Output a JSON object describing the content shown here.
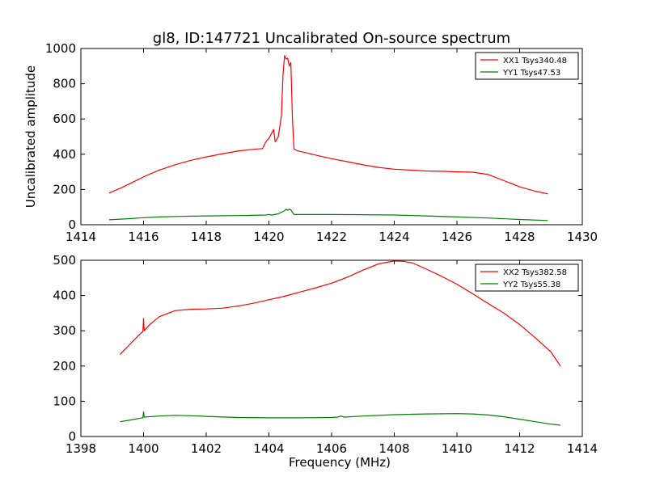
{
  "title": "gl8, ID:147721 Uncalibrated On-source spectrum",
  "colors": {
    "xx": "#ff0000",
    "yy": "#008000",
    "axes": "#000000"
  },
  "chart_data": [
    {
      "type": "line",
      "ylabel": "Uncalibrated amplitude",
      "xlabel": "",
      "xlim": [
        1414,
        1430
      ],
      "ylim": [
        0,
        1000
      ],
      "xticks": [
        1414,
        1416,
        1418,
        1420,
        1422,
        1424,
        1426,
        1428,
        1430
      ],
      "yticks": [
        0,
        200,
        400,
        600,
        800,
        1000
      ],
      "legend_position": "top-right",
      "series": [
        {
          "name": "XX1 Tsys340.48",
          "color": "#ff0000",
          "x": [
            1414.9,
            1415.3,
            1415.7,
            1416.1,
            1416.5,
            1417.0,
            1417.5,
            1418.0,
            1418.5,
            1419.0,
            1419.5,
            1419.8,
            1419.9,
            1420.0,
            1420.15,
            1420.2,
            1420.3,
            1420.4,
            1420.45,
            1420.5,
            1420.55,
            1420.6,
            1420.65,
            1420.7,
            1420.75,
            1420.8,
            1420.9,
            1421.2,
            1421.5,
            1422.0,
            1422.5,
            1423.0,
            1423.5,
            1424.0,
            1424.5,
            1425.0,
            1425.5,
            1426.0,
            1426.5,
            1427.0,
            1427.5,
            1428.0,
            1428.5,
            1428.9
          ],
          "y": [
            180,
            210,
            245,
            280,
            310,
            340,
            365,
            385,
            402,
            418,
            428,
            432,
            470,
            490,
            540,
            470,
            500,
            620,
            850,
            960,
            940,
            945,
            900,
            920,
            600,
            430,
            420,
            408,
            395,
            375,
            358,
            340,
            325,
            315,
            310,
            305,
            303,
            300,
            298,
            285,
            250,
            215,
            190,
            175
          ]
        },
        {
          "name": "YY1 Tsys47.53",
          "color": "#008000",
          "x": [
            1414.9,
            1415.5,
            1416.0,
            1416.5,
            1417.0,
            1418.0,
            1419.0,
            1419.5,
            1419.9,
            1420.0,
            1420.1,
            1420.3,
            1420.5,
            1420.55,
            1420.6,
            1420.65,
            1420.7,
            1420.8,
            1421.0,
            1422.0,
            1423.0,
            1424.0,
            1425.0,
            1426.0,
            1427.0,
            1428.0,
            1428.9
          ],
          "y": [
            28,
            34,
            40,
            44,
            47,
            50,
            52,
            53,
            55,
            58,
            55,
            62,
            80,
            88,
            82,
            88,
            85,
            58,
            58,
            58,
            57,
            55,
            50,
            44,
            38,
            30,
            24
          ]
        }
      ]
    },
    {
      "type": "line",
      "ylabel": "",
      "xlabel": "Frequency (MHz)",
      "xlim": [
        1398,
        1414
      ],
      "ylim": [
        0,
        500
      ],
      "xticks": [
        1398,
        1400,
        1402,
        1404,
        1406,
        1408,
        1410,
        1412,
        1414
      ],
      "yticks": [
        0,
        100,
        200,
        300,
        400,
        500
      ],
      "legend_position": "top-right",
      "series": [
        {
          "name": "XX2 Tsys382.58",
          "color": "#ff0000",
          "x": [
            1399.25,
            1399.6,
            1399.9,
            1399.98,
            1400.0,
            1400.02,
            1400.2,
            1400.5,
            1401.0,
            1401.5,
            1402.0,
            1402.5,
            1403.0,
            1403.5,
            1404.0,
            1404.5,
            1405.0,
            1405.5,
            1406.0,
            1406.5,
            1407.0,
            1407.5,
            1408.0,
            1408.3,
            1408.6,
            1409.0,
            1409.5,
            1410.0,
            1410.5,
            1411.0,
            1411.5,
            1412.0,
            1412.5,
            1413.0,
            1413.3
          ],
          "y": [
            233,
            265,
            292,
            298,
            335,
            300,
            318,
            340,
            357,
            361,
            362,
            364,
            370,
            378,
            388,
            398,
            410,
            422,
            435,
            452,
            472,
            490,
            498,
            497,
            492,
            476,
            455,
            432,
            405,
            377,
            350,
            318,
            280,
            240,
            200
          ]
        },
        {
          "name": "YY2 Tsys55.38",
          "color": "#008000",
          "x": [
            1399.25,
            1399.6,
            1399.9,
            1399.98,
            1400.0,
            1400.02,
            1400.5,
            1401.0,
            1401.5,
            1402.0,
            1403.0,
            1404.0,
            1405.0,
            1406.0,
            1406.2,
            1406.3,
            1406.4,
            1407.0,
            1408.0,
            1409.0,
            1410.0,
            1410.5,
            1411.0,
            1411.5,
            1412.0,
            1412.5,
            1413.0,
            1413.3
          ],
          "y": [
            42,
            47,
            52,
            53,
            70,
            55,
            58,
            60,
            59,
            57,
            54,
            53,
            53,
            54,
            55,
            58,
            55,
            58,
            62,
            64,
            65,
            64,
            61,
            56,
            49,
            42,
            35,
            32
          ]
        }
      ]
    }
  ]
}
